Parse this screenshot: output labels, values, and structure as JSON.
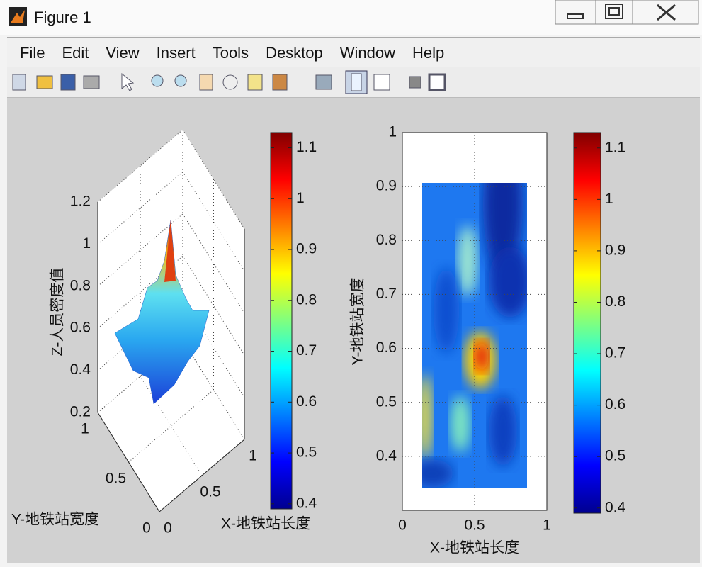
{
  "window": {
    "title": "Figure 1"
  },
  "menu": [
    "File",
    "Edit",
    "View",
    "Insert",
    "Tools",
    "Desktop",
    "Window",
    "Help"
  ],
  "chart_data": [
    {
      "type": "surface3d",
      "xlabel": "X-地铁站长度",
      "ylabel": "Y-地铁站宽度",
      "zlabel": "Z-人员密度值",
      "xlim": [
        0,
        1
      ],
      "ylim": [
        0,
        1
      ],
      "zlim": [
        0.2,
        1.2
      ],
      "xticks": [
        0,
        0.5,
        1
      ],
      "yticks": [
        0,
        0.5,
        1
      ],
      "zticks": [
        0.2,
        0.4,
        0.6,
        0.8,
        1,
        1.2
      ],
      "clim": [
        0.39,
        1.13
      ],
      "cticks": [
        0.4,
        0.5,
        0.6,
        0.7,
        0.8,
        0.9,
        1,
        1.1
      ],
      "grid": true
    },
    {
      "type": "heatmap",
      "xlabel": "X-地铁站长度",
      "ylabel": "Y-地铁站宽度",
      "xlim": [
        0,
        1
      ],
      "ylim": [
        0.3,
        1
      ],
      "xticks": [
        0,
        0.5,
        1
      ],
      "yticks": [
        0.4,
        0.5,
        0.6,
        0.7,
        0.8,
        0.9,
        1
      ],
      "clim": [
        0.39,
        1.13
      ],
      "cticks": [
        0.4,
        0.5,
        0.6,
        0.7,
        0.8,
        0.9,
        1,
        1.1
      ],
      "grid": true
    }
  ]
}
